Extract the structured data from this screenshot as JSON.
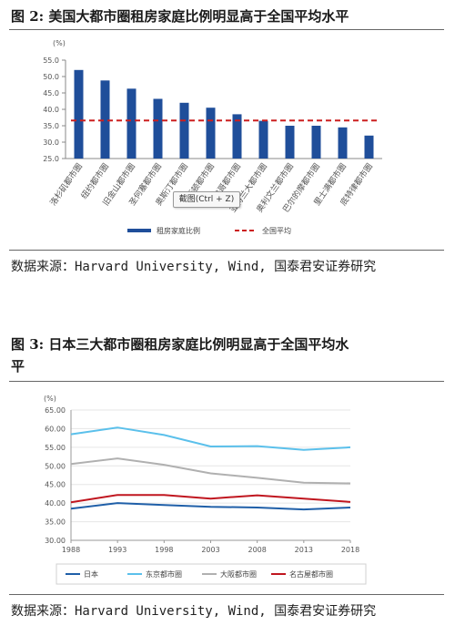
{
  "figure2": {
    "title": "图 2: 美国大都市圈租房家庭比例明显高于全国平均水平",
    "source": "数据来源：Harvard University, Wind, 国泰君安证券研究",
    "tooltip": "截图(Ctrl + Z)"
  },
  "figure3": {
    "title_line1": "图 3: 日本三大都市圈租房家庭比例明显高于全国平均水",
    "title_line2": "平",
    "source": "数据来源：Harvard University, Wind, 国泰君安证券研究"
  },
  "chart_data": [
    {
      "type": "bar",
      "unit_label": "(%)",
      "categories": [
        "洛杉矶都市圈",
        "纽约都市圈",
        "旧金山都市圈",
        "圣何塞都市圈",
        "奥斯汀都市圈",
        "休斯顿都市圈",
        "芝加哥都市圈",
        "亚特兰大都市圈",
        "奥利文兰都市圈",
        "巴尔的摩都市圈",
        "里士满都市圈",
        "底特律都市圈"
      ],
      "series": [
        {
          "name": "租房家庭比例",
          "values": [
            52.0,
            48.8,
            46.3,
            43.2,
            42.0,
            40.5,
            38.5,
            36.5,
            35.0,
            35.0,
            34.5,
            32.0
          ],
          "color": "#1f4e9a"
        },
        {
          "name": "全国平均",
          "values": [
            36.6,
            36.6,
            36.6,
            36.6,
            36.6,
            36.6,
            36.6,
            36.6,
            36.6,
            36.6,
            36.6,
            36.6
          ],
          "color": "#cc1f1f",
          "style": "dashed"
        }
      ],
      "ylim": [
        25,
        55
      ],
      "yticks": [
        "25.0",
        "30.0",
        "35.0",
        "40.0",
        "45.0",
        "50.0",
        "55.0"
      ],
      "legend": "bottom"
    },
    {
      "type": "line",
      "unit_label": "(%)",
      "x": [
        "1988",
        "1993",
        "1998",
        "2003",
        "2008",
        "2013",
        "2018"
      ],
      "series": [
        {
          "name": "日本",
          "values": [
            38.5,
            40.0,
            39.5,
            39.0,
            38.8,
            38.3,
            38.8
          ],
          "color": "#1f5fa8"
        },
        {
          "name": "东京都市圈",
          "values": [
            58.5,
            60.3,
            58.3,
            55.2,
            55.3,
            54.3,
            55.0
          ],
          "color": "#5bc0eb"
        },
        {
          "name": "大阪都市圈",
          "values": [
            50.5,
            52.0,
            50.3,
            48.0,
            46.8,
            45.5,
            45.3
          ],
          "color": "#b0b0b0"
        },
        {
          "name": "名古屋都市圈",
          "values": [
            40.2,
            42.2,
            42.2,
            41.2,
            42.1,
            41.2,
            40.3
          ],
          "color": "#c0161f"
        }
      ],
      "ylim": [
        30,
        65
      ],
      "yticks": [
        "30.00",
        "35.00",
        "40.00",
        "45.00",
        "50.00",
        "55.00",
        "60.00",
        "65.00"
      ],
      "legend": "bottom"
    }
  ]
}
